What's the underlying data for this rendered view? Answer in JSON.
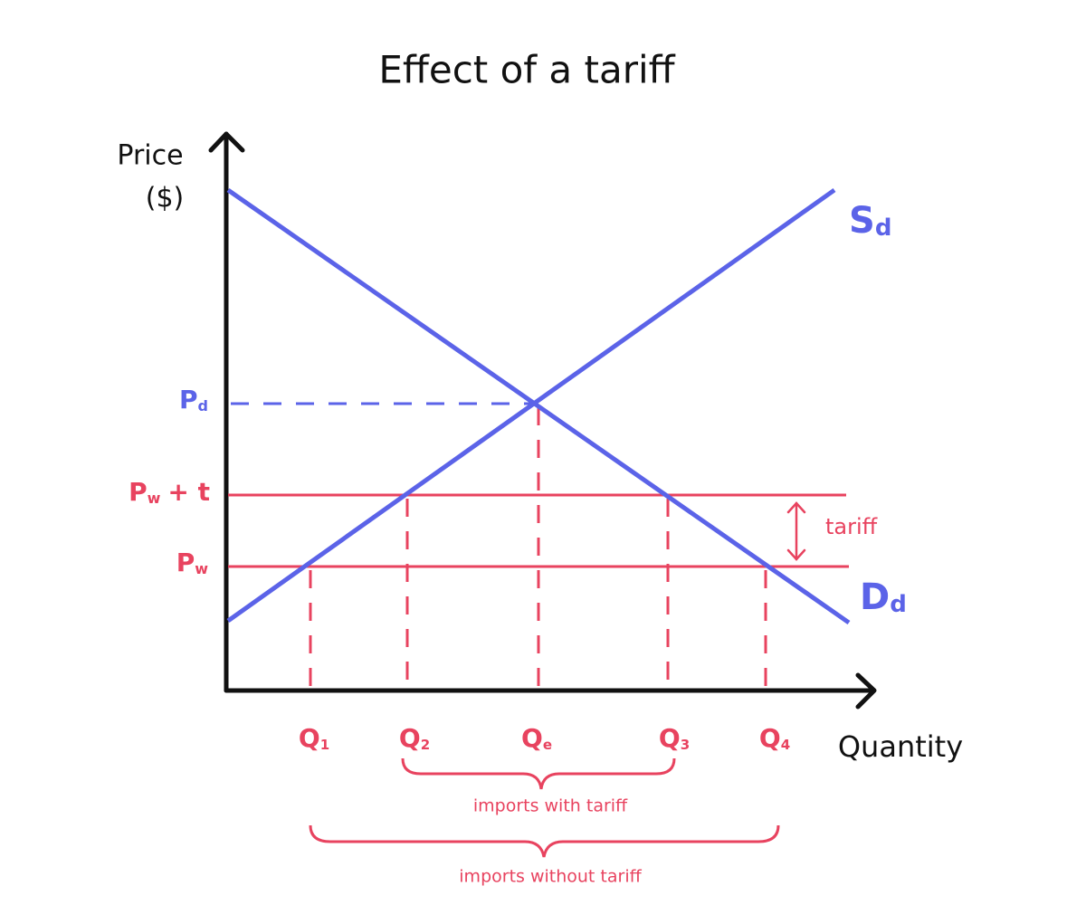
{
  "title": "Effect of a tariff",
  "axes": {
    "y_label": [
      "Price",
      "($)"
    ],
    "x_label": "Quantity"
  },
  "curves": {
    "supply": {
      "base": "S",
      "sub": "d"
    },
    "demand": {
      "base": "D",
      "sub": "d"
    }
  },
  "prices": {
    "pd": {
      "base": "P",
      "sub": "d"
    },
    "pw_t": {
      "base": "P",
      "sub": "w",
      "suffix": "+ t"
    },
    "pw": {
      "base": "P",
      "sub": "w"
    }
  },
  "quantities": [
    {
      "base": "Q",
      "sub": "1"
    },
    {
      "base": "Q",
      "sub": "2"
    },
    {
      "base": "Q",
      "sub": "e"
    },
    {
      "base": "Q",
      "sub": "3"
    },
    {
      "base": "Q",
      "sub": "4"
    }
  ],
  "tariff_label": "tariff",
  "braces": {
    "with_tariff": "imports with tariff",
    "without_tariff": "imports without tariff"
  }
}
